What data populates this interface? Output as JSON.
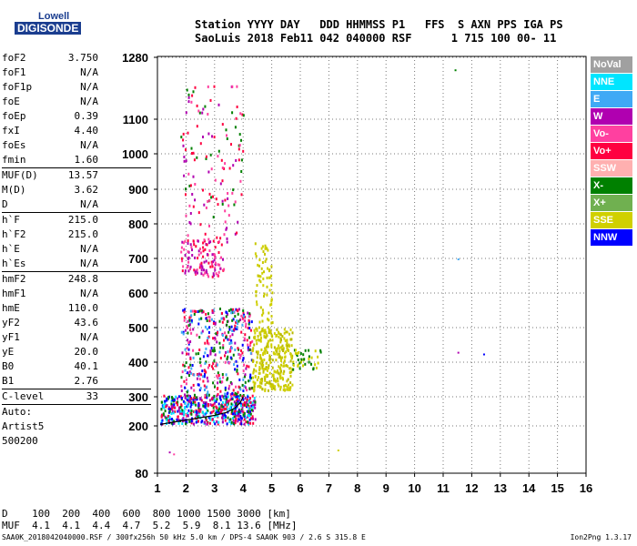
{
  "logo": {
    "line1": "Lowell",
    "line2": "DIGISONDE"
  },
  "header": {
    "line1": "Station YYYY DAY   DDD HHMMSS P1   FFS  S AXN PPS IGA PS",
    "line2": "SaoLuis 2018 Feb11 042 040000 RSF      1 715 100 00- 11"
  },
  "params": [
    {
      "k": "foF2",
      "v": "3.750"
    },
    {
      "k": "foF1",
      "v": "N/A"
    },
    {
      "k": "foF1p",
      "v": "N/A"
    },
    {
      "k": "foE",
      "v": "N/A"
    },
    {
      "k": "foEp",
      "v": "0.39"
    },
    {
      "k": "fxI",
      "v": "4.40"
    },
    {
      "k": "foEs",
      "v": "N/A"
    },
    {
      "k": "fmin",
      "v": "1.60"
    },
    {
      "k": "MUF(D)",
      "v": "13.57",
      "sep": true
    },
    {
      "k": "M(D)",
      "v": "3.62"
    },
    {
      "k": "D",
      "v": "N/A"
    },
    {
      "k": "h`F",
      "v": "215.0",
      "sep": true
    },
    {
      "k": "h`F2",
      "v": "215.0"
    },
    {
      "k": "h`E",
      "v": "N/A"
    },
    {
      "k": "h`Es",
      "v": "N/A"
    },
    {
      "k": "hmF2",
      "v": "248.8",
      "sep": true
    },
    {
      "k": "hmF1",
      "v": "N/A"
    },
    {
      "k": "hmE",
      "v": "110.0"
    },
    {
      "k": "yF2",
      "v": "43.6"
    },
    {
      "k": "yF1",
      "v": "N/A"
    },
    {
      "k": "yE",
      "v": "20.0"
    },
    {
      "k": "B0",
      "v": "40.1"
    },
    {
      "k": "B1",
      "v": "2.76"
    },
    {
      "k": "C-level",
      "v": "33",
      "sep": true
    },
    {
      "k": "Auto:",
      "v": "",
      "sep": true
    },
    {
      "k": "Artist5",
      "v": ""
    },
    {
      "k": "500200",
      "v": ""
    }
  ],
  "legend": [
    {
      "label": "NoVal",
      "color": "#a0a0a0"
    },
    {
      "label": "NNE",
      "color": "#00e5ff"
    },
    {
      "label": "E",
      "color": "#3fa9f5"
    },
    {
      "label": "W",
      "color": "#b000b0"
    },
    {
      "label": "Vo-",
      "color": "#ff40a0"
    },
    {
      "label": "Vo+",
      "color": "#ff0040"
    },
    {
      "label": "SSW",
      "color": "#ffb0b0"
    },
    {
      "label": "X-",
      "color": "#008000"
    },
    {
      "label": "X+",
      "color": "#70b050"
    },
    {
      "label": "SSE",
      "color": "#d0d000"
    },
    {
      "label": "NNW",
      "color": "#0000ff"
    }
  ],
  "chart_data": {
    "type": "scatter",
    "xlim": [
      1,
      16
    ],
    "x_ticks": [
      "1",
      "2",
      "3",
      "4",
      "5",
      "6",
      "7",
      "8",
      "9",
      "10",
      "11",
      "12",
      "13",
      "14",
      "15",
      "16"
    ],
    "y_ticks": [
      "80",
      "200",
      "300",
      "400",
      "500",
      "600",
      "700",
      "800",
      "900",
      "1000",
      "1100",
      "1280"
    ],
    "y_tick_values": [
      80,
      200,
      300,
      400,
      500,
      600,
      700,
      800,
      900,
      1000,
      1100,
      1280
    ],
    "grid": true,
    "trace_curve": [
      [
        1.1,
        205
      ],
      [
        1.5,
        212
      ],
      [
        2.0,
        220
      ],
      [
        2.5,
        228
      ],
      [
        3.0,
        236
      ],
      [
        3.4,
        246
      ],
      [
        3.7,
        260
      ],
      [
        3.9,
        280
      ],
      [
        4.0,
        300
      ]
    ],
    "echo_regions": [
      {
        "name": "F-trace low",
        "xr": [
          1.1,
          4.4
        ],
        "yr": [
          210,
          310
        ],
        "colors": [
          "#0000ff",
          "#008000",
          "#ff0040",
          "#b000b0",
          "#00e5ff"
        ],
        "density": 520
      },
      {
        "name": "F-trace body",
        "xr": [
          1.8,
          4.3
        ],
        "yr": [
          300,
          560
        ],
        "colors": [
          "#ff0040",
          "#b000b0",
          "#ff40a0",
          "#008000",
          "#0000ff",
          "#3fa9f5"
        ],
        "density": 420
      },
      {
        "name": "O2 echoes",
        "xr": [
          1.8,
          3.3
        ],
        "yr": [
          650,
          760
        ],
        "colors": [
          "#ff40a0",
          "#ff0040",
          "#b000b0"
        ],
        "density": 120
      },
      {
        "name": "high echoes",
        "xr": [
          1.8,
          4.0
        ],
        "yr": [
          750,
          1200
        ],
        "colors": [
          "#ff40a0",
          "#b000b0",
          "#008000",
          "#ff0040"
        ],
        "density": 140
      },
      {
        "name": "SSE patch",
        "xr": [
          4.3,
          5.7
        ],
        "yr": [
          320,
          500
        ],
        "colors": [
          "#d0d000",
          "#d0d000",
          "#c8c800",
          "#b8b800"
        ],
        "density": 300
      },
      {
        "name": "SSE upper",
        "xr": [
          4.4,
          5.0
        ],
        "yr": [
          480,
          760
        ],
        "colors": [
          "#d0d000",
          "#c8c800"
        ],
        "density": 80
      },
      {
        "name": "SSE tail",
        "xr": [
          5.7,
          6.7
        ],
        "yr": [
          380,
          440
        ],
        "colors": [
          "#d0d000",
          "#008000"
        ],
        "density": 40
      }
    ],
    "isolated_points": [
      {
        "x": 11.4,
        "y": 1245,
        "color": "#008000"
      },
      {
        "x": 11.5,
        "y": 700,
        "color": "#3fa9f5"
      },
      {
        "x": 11.5,
        "y": 430,
        "color": "#b000b0"
      },
      {
        "x": 12.4,
        "y": 425,
        "color": "#0000ff"
      },
      {
        "x": 7.3,
        "y": 140,
        "color": "#d0d000"
      },
      {
        "x": 1.4,
        "y": 135,
        "color": "#b000b0"
      },
      {
        "x": 1.55,
        "y": 130,
        "color": "#ff40a0"
      }
    ]
  },
  "footer": {
    "line1": "D    100  200  400  600  800 1000 1500 3000 [km]",
    "line2": "MUF  4.1  4.1  4.4  4.7  5.2  5.9  8.1 13.6 [MHz]",
    "info": "SAA0K_2018042040000.RSF / 300fx256h 50 kHz 5.0 km / DPS-4 SAA0K 903 / 2.6 S 315.8 E",
    "version": "Ion2Png 1.3.17"
  }
}
